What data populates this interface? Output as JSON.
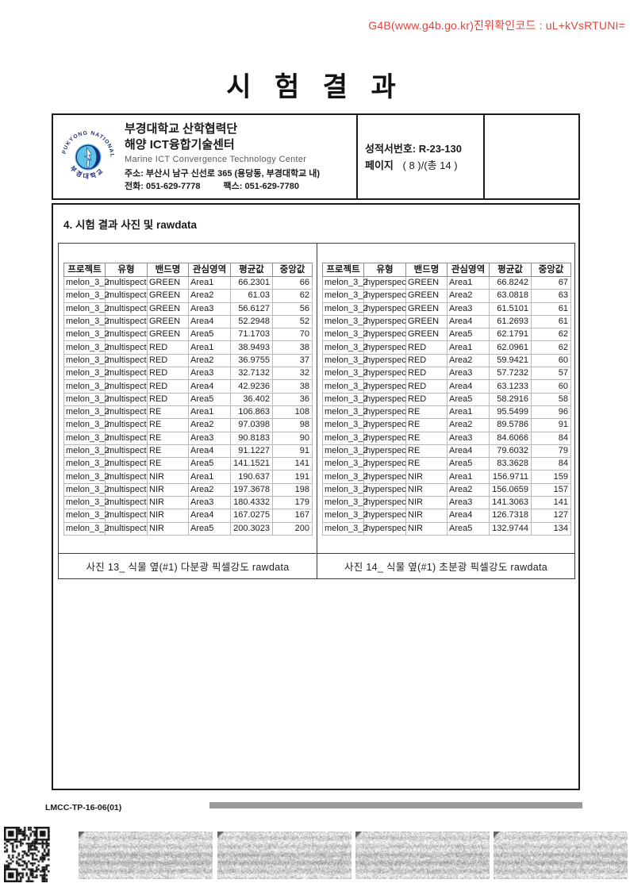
{
  "verification_code": "G4B(www.g4b.go.kr)진위확인코드 : uL+kVsRTUNI=",
  "title": "시 험 결 과",
  "header": {
    "org_name": "부경대학교 산학협력단",
    "center_name": "해양 ICT융합기술센터",
    "center_name_en": "Marine ICT Convergence Technology Center",
    "address": "주소: 부산시 남구 신선로 365 (용당동, 부경대학교 내)",
    "phone": "전화: 051-629-7778",
    "fax": "팩스:  051-629-7780",
    "report_no": "성적서번호: R-23-130",
    "page_label": "페이지",
    "page_value": "( 8 )/(총 14 )"
  },
  "section_title": "4. 시험 결과 사진 및 rawdata",
  "tables": {
    "columns": [
      "프로젝트",
      "유형",
      "밴드명",
      "관심영역",
      "평균값",
      "중앙값"
    ],
    "left": {
      "caption": "사진 13_ 식물 옆(#1) 다분광 픽셀강도 rawdata",
      "rows": [
        [
          "melon_3_2",
          "multispect",
          "GREEN",
          "Area1",
          "66.2301",
          "66"
        ],
        [
          "melon_3_2",
          "multispect",
          "GREEN",
          "Area2",
          "61.03",
          "62"
        ],
        [
          "melon_3_2",
          "multispect",
          "GREEN",
          "Area3",
          "56.6127",
          "56"
        ],
        [
          "melon_3_2",
          "multispect",
          "GREEN",
          "Area4",
          "52.2948",
          "52"
        ],
        [
          "melon_3_2",
          "multispect",
          "GREEN",
          "Area5",
          "71.1703",
          "70"
        ],
        [
          "melon_3_2",
          "multispect",
          "RED",
          "Area1",
          "38.9493",
          "38"
        ],
        [
          "melon_3_2",
          "multispect",
          "RED",
          "Area2",
          "36.9755",
          "37"
        ],
        [
          "melon_3_2",
          "multispect",
          "RED",
          "Area3",
          "32.7132",
          "32"
        ],
        [
          "melon_3_2",
          "multispect",
          "RED",
          "Area4",
          "42.9236",
          "38"
        ],
        [
          "melon_3_2",
          "multispect",
          "RED",
          "Area5",
          "36.402",
          "36"
        ],
        [
          "melon_3_2",
          "multispect",
          "RE",
          "Area1",
          "106.863",
          "108"
        ],
        [
          "melon_3_2",
          "multispect",
          "RE",
          "Area2",
          "97.0398",
          "98"
        ],
        [
          "melon_3_2",
          "multispect",
          "RE",
          "Area3",
          "90.8183",
          "90"
        ],
        [
          "melon_3_2",
          "multispect",
          "RE",
          "Area4",
          "91.1227",
          "91"
        ],
        [
          "melon_3_2",
          "multispect",
          "RE",
          "Area5",
          "141.1521",
          "141"
        ],
        [
          "melon_3_2",
          "multispect",
          "NIR",
          "Area1",
          "190.637",
          "191"
        ],
        [
          "melon_3_2",
          "multispect",
          "NIR",
          "Area2",
          "197.3678",
          "198"
        ],
        [
          "melon_3_2",
          "multispect",
          "NIR",
          "Area3",
          "180.4332",
          "179"
        ],
        [
          "melon_3_2",
          "multispect",
          "NIR",
          "Area4",
          "167.0275",
          "167"
        ],
        [
          "melon_3_2",
          "multispect",
          "NIR",
          "Area5",
          "200.3023",
          "200"
        ]
      ]
    },
    "right": {
      "caption": "사진 14_ 식물 옆(#1) 초분광 픽셀강도 rawdata",
      "rows": [
        [
          "melon_3_2",
          "hyperspec",
          "GREEN",
          "Area1",
          "66.8242",
          "67"
        ],
        [
          "melon_3_2",
          "hyperspec",
          "GREEN",
          "Area2",
          "63.0818",
          "63"
        ],
        [
          "melon_3_2",
          "hyperspec",
          "GREEN",
          "Area3",
          "61.5101",
          "61"
        ],
        [
          "melon_3_2",
          "hyperspec",
          "GREEN",
          "Area4",
          "61.2693",
          "61"
        ],
        [
          "melon_3_2",
          "hyperspec",
          "GREEN",
          "Area5",
          "62.1791",
          "62"
        ],
        [
          "melon_3_2",
          "hyperspec",
          "RED",
          "Area1",
          "62.0961",
          "62"
        ],
        [
          "melon_3_2",
          "hyperspec",
          "RED",
          "Area2",
          "59.9421",
          "60"
        ],
        [
          "melon_3_2",
          "hyperspec",
          "RED",
          "Area3",
          "57.7232",
          "57"
        ],
        [
          "melon_3_2",
          "hyperspec",
          "RED",
          "Area4",
          "63.1233",
          "60"
        ],
        [
          "melon_3_2",
          "hyperspec",
          "RED",
          "Area5",
          "58.2916",
          "58"
        ],
        [
          "melon_3_2",
          "hyperspec",
          "RE",
          "Area1",
          "95.5499",
          "96"
        ],
        [
          "melon_3_2",
          "hyperspec",
          "RE",
          "Area2",
          "89.5786",
          "91"
        ],
        [
          "melon_3_2",
          "hyperspec",
          "RE",
          "Area3",
          "84.6066",
          "84"
        ],
        [
          "melon_3_2",
          "hyperspec",
          "RE",
          "Area4",
          "79.6032",
          "79"
        ],
        [
          "melon_3_2",
          "hyperspec",
          "RE",
          "Area5",
          "83.3628",
          "84"
        ],
        [
          "melon_3_2",
          "hyperspec",
          "NIR",
          "Area1",
          "156.9711",
          "159"
        ],
        [
          "melon_3_2",
          "hyperspec",
          "NIR",
          "Area2",
          "156.0659",
          "157"
        ],
        [
          "melon_3_2",
          "hyperspec",
          "NIR",
          "Area3",
          "141.3063",
          "141"
        ],
        [
          "melon_3_2",
          "hyperspec",
          "NIR",
          "Area4",
          "126.7318",
          "127"
        ],
        [
          "melon_3_2",
          "hyperspec",
          "NIR",
          "Area5",
          "132.9744",
          "134"
        ]
      ]
    }
  },
  "footer": {
    "doc_code": "LMCC-TP-16-06(01)"
  },
  "colors": {
    "verification_red": "#e0453f",
    "logo_navy": "#1f2e7a",
    "logo_cyan": "#5fc3e7",
    "footer_bar_gray": "#9a9a9a"
  }
}
